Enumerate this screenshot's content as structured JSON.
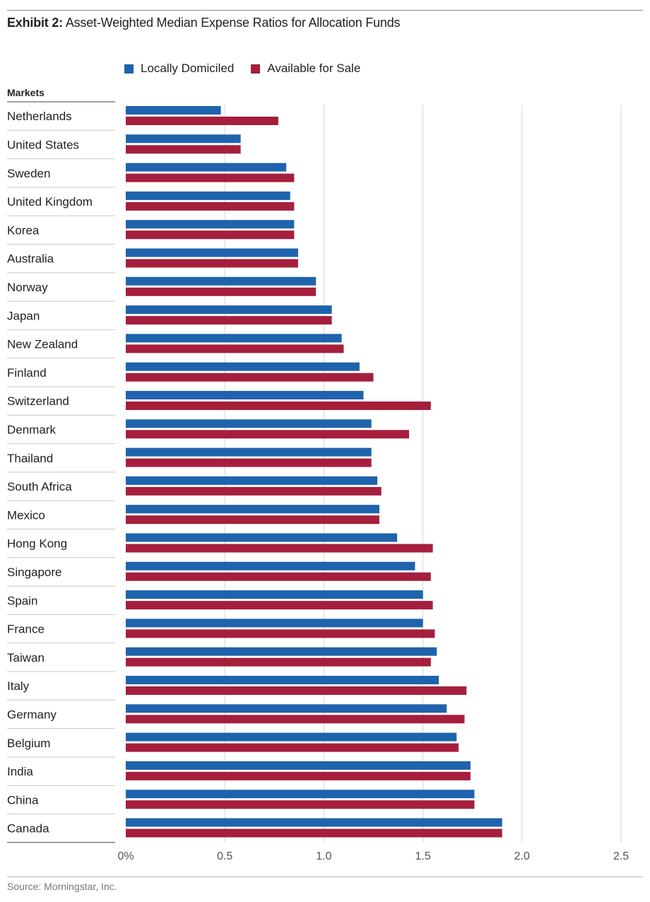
{
  "header": {
    "title_bold": "Exhibit 2:",
    "title_rest": "Asset-Weighted Median Expense Ratios for Allocation Funds"
  },
  "footer": {
    "source": "Source: Morningstar, Inc."
  },
  "colors": {
    "locally_domiciled": "#1f63ad",
    "available_for_sale": "#a51f3d",
    "grid": "#d6d6d6"
  },
  "chart_data": {
    "type": "bar",
    "orientation": "horizontal",
    "title": "Asset-Weighted Median Expense Ratios for Allocation Funds",
    "ylabel": "Markets",
    "xlabel": "",
    "xlim": [
      0,
      2.5
    ],
    "xticks": [
      0,
      0.5,
      1.0,
      1.5,
      2.0,
      2.5
    ],
    "xtick_labels": [
      "0%",
      "0.5",
      "1.0",
      "1.5",
      "2.0",
      "2.5"
    ],
    "grid": true,
    "legend_position": "top-left",
    "categories": [
      "Netherlands",
      "United States",
      "Sweden",
      "United Kingdom",
      "Korea",
      "Australia",
      "Norway",
      "Japan",
      "New Zealand",
      "Finland",
      "Switzerland",
      "Denmark",
      "Thailand",
      "South Africa",
      "Mexico",
      "Hong Kong",
      "Singapore",
      "Spain",
      "France",
      "Taiwan",
      "Italy",
      "Germany",
      "Belgium",
      "India",
      "China",
      "Canada"
    ],
    "series": [
      {
        "name": "Locally Domiciled",
        "color": "#1f63ad",
        "values": [
          0.48,
          0.58,
          0.81,
          0.83,
          0.85,
          0.87,
          0.96,
          1.04,
          1.09,
          1.18,
          1.2,
          1.24,
          1.24,
          1.27,
          1.28,
          1.37,
          1.46,
          1.5,
          1.5,
          1.57,
          1.58,
          1.62,
          1.67,
          1.74,
          1.76,
          1.9
        ]
      },
      {
        "name": "Available for Sale",
        "color": "#a51f3d",
        "values": [
          0.77,
          0.58,
          0.85,
          0.85,
          0.85,
          0.87,
          0.96,
          1.04,
          1.1,
          1.25,
          1.54,
          1.43,
          1.24,
          1.29,
          1.28,
          1.55,
          1.54,
          1.55,
          1.56,
          1.54,
          1.72,
          1.71,
          1.68,
          1.74,
          1.76,
          1.9
        ]
      }
    ]
  }
}
